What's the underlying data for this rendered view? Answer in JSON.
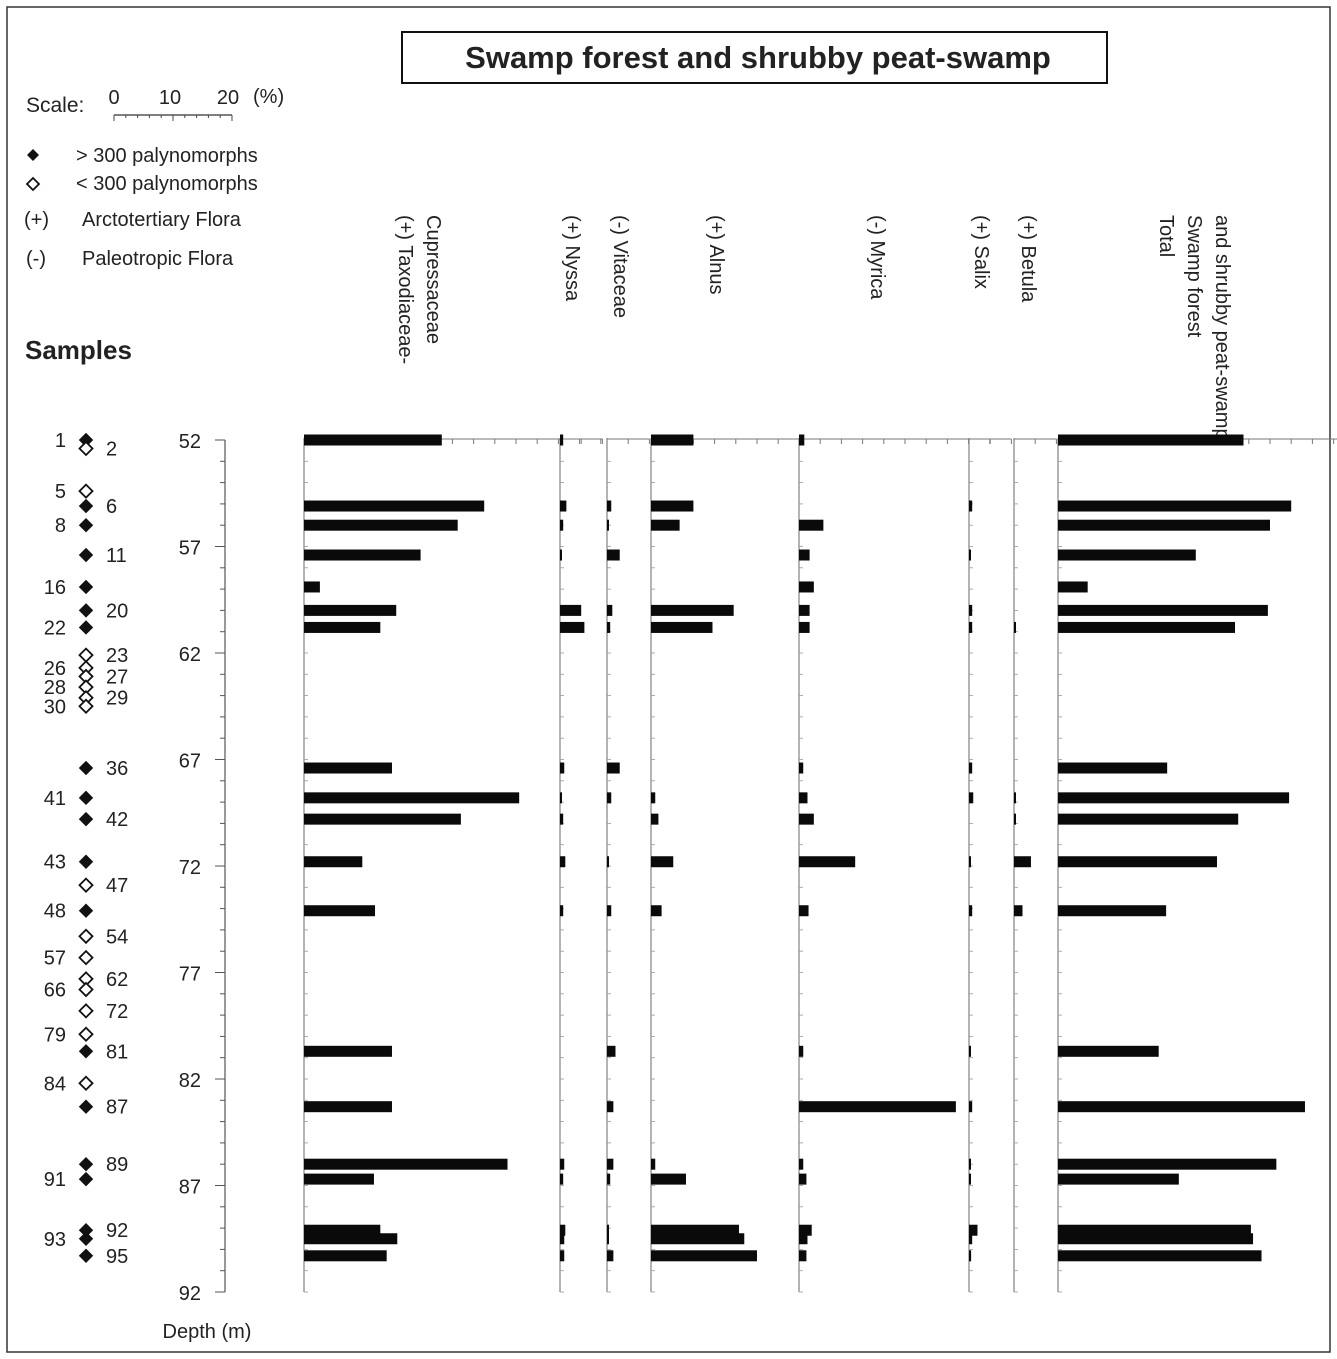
{
  "chart_data": {
    "type": "bar",
    "orientation": "horizontal",
    "title": "Swamp forest and shrubby peat-swamp",
    "scale": {
      "label": "Scale:",
      "ticks": [
        "0",
        "10",
        "20"
      ],
      "unit": "(%)"
    },
    "legend": [
      {
        "symbol": "filled-diamond",
        "text": "> 300 palynomorphs"
      },
      {
        "symbol": "open-diamond",
        "text": "< 300 palynomorphs"
      },
      {
        "symbol": "(+)",
        "text": "Arctotertiary Flora"
      },
      {
        "symbol": "(-)",
        "text": "Paleotropic Flora"
      }
    ],
    "samples_label": "Samples",
    "ylabel": "Depth (m)",
    "depth_ticks": [
      52,
      57,
      62,
      67,
      72,
      77,
      82,
      87,
      92
    ],
    "ylim": [
      52,
      92
    ],
    "panels": [
      {
        "name": "(+) Taxodiaceae-",
        "name2": "Cupressaceae",
        "max": 28
      },
      {
        "name": "(+) Nyssa",
        "max": 4
      },
      {
        "name": "(-) Vitaceae",
        "max": 4
      },
      {
        "name": "(+) Alnus",
        "max": 14
      },
      {
        "name": "(-) Myrica",
        "max": 18
      },
      {
        "name": "(+) Salix",
        "max": 4
      },
      {
        "name": "(+) Betula",
        "max": 4
      },
      {
        "name": "Total",
        "name2": "Swamp forest",
        "name3": "and shrubby peat-swamp",
        "max": 30
      }
    ],
    "samples": [
      {
        "id": "1",
        "side": "left",
        "filled": true,
        "depth": 52.0,
        "values": [
          13,
          0.3,
          0,
          4,
          0.5,
          0,
          0,
          17.5
        ]
      },
      {
        "id": "2",
        "side": "right",
        "filled": false,
        "depth": 52.4,
        "values": null
      },
      {
        "id": "5",
        "side": "left",
        "filled": false,
        "depth": 54.4,
        "values": null
      },
      {
        "id": "6",
        "side": "right",
        "filled": true,
        "depth": 55.1,
        "values": [
          17,
          0.6,
          0.4,
          4,
          0,
          0.3,
          0,
          22
        ]
      },
      {
        "id": "8",
        "side": "left",
        "filled": true,
        "depth": 56.0,
        "values": [
          14.5,
          0.3,
          0.1,
          2.7,
          2.3,
          0,
          0,
          20
        ]
      },
      {
        "id": "11",
        "side": "right",
        "filled": true,
        "depth": 57.4,
        "values": [
          11,
          0.1,
          1.2,
          0,
          1,
          0.1,
          0,
          13
        ]
      },
      {
        "id": "16",
        "side": "left",
        "filled": true,
        "depth": 58.9,
        "values": [
          1.5,
          0,
          0,
          0,
          1.4,
          0,
          0,
          2.8
        ]
      },
      {
        "id": "20",
        "side": "right",
        "filled": true,
        "depth": 60.0,
        "values": [
          8.7,
          2,
          0.5,
          7.8,
          1,
          0.3,
          0,
          19.8
        ]
      },
      {
        "id": "22",
        "side": "left",
        "filled": true,
        "depth": 60.8,
        "values": [
          7.2,
          2.3,
          0.3,
          5.8,
          1,
          0.3,
          0.1,
          16.7
        ]
      },
      {
        "id": "23",
        "side": "right",
        "filled": false,
        "depth": 62.1,
        "values": null
      },
      {
        "id": "26",
        "side": "left",
        "filled": false,
        "depth": 62.7,
        "values": null
      },
      {
        "id": "27",
        "side": "right",
        "filled": false,
        "depth": 63.1,
        "values": null
      },
      {
        "id": "28",
        "side": "left",
        "filled": false,
        "depth": 63.6,
        "values": null
      },
      {
        "id": "29",
        "side": "right",
        "filled": false,
        "depth": 64.1,
        "values": null
      },
      {
        "id": "30",
        "side": "left",
        "filled": false,
        "depth": 64.5,
        "values": null
      },
      {
        "id": "36",
        "side": "right",
        "filled": true,
        "depth": 67.4,
        "values": [
          8.3,
          0.4,
          1.2,
          0,
          0.4,
          0.3,
          0,
          10.3
        ]
      },
      {
        "id": "41",
        "side": "left",
        "filled": true,
        "depth": 68.8,
        "values": [
          20.3,
          0.1,
          0.4,
          0.4,
          0.8,
          0.4,
          0.1,
          21.8
        ]
      },
      {
        "id": "42",
        "side": "right",
        "filled": true,
        "depth": 69.8,
        "values": [
          14.8,
          0.3,
          0,
          0.7,
          1.4,
          0,
          0.1,
          17
        ]
      },
      {
        "id": "43",
        "side": "left",
        "filled": true,
        "depth": 71.8,
        "values": [
          5.5,
          0.5,
          0.1,
          2.1,
          5.3,
          0.1,
          1.6,
          15
        ]
      },
      {
        "id": "47",
        "side": "right",
        "filled": false,
        "depth": 72.9,
        "values": null
      },
      {
        "id": "48",
        "side": "left",
        "filled": true,
        "depth": 74.1,
        "values": [
          6.7,
          0.3,
          0.4,
          1,
          0.9,
          0.3,
          0.8,
          10.2
        ]
      },
      {
        "id": "54",
        "side": "right",
        "filled": false,
        "depth": 75.3,
        "values": null
      },
      {
        "id": "57",
        "side": "left",
        "filled": false,
        "depth": 76.3,
        "values": null
      },
      {
        "id": "62",
        "side": "right",
        "filled": false,
        "depth": 77.3,
        "values": null
      },
      {
        "id": "66",
        "side": "left",
        "filled": false,
        "depth": 77.8,
        "values": null
      },
      {
        "id": "72",
        "side": "right",
        "filled": false,
        "depth": 78.8,
        "values": null
      },
      {
        "id": "79",
        "side": "left",
        "filled": false,
        "depth": 79.9,
        "values": null
      },
      {
        "id": "81",
        "side": "right",
        "filled": true,
        "depth": 80.7,
        "values": [
          8.3,
          0,
          0.8,
          0,
          0.4,
          0.1,
          0,
          9.5
        ]
      },
      {
        "id": "84",
        "side": "left",
        "filled": false,
        "depth": 82.2,
        "values": null
      },
      {
        "id": "87",
        "side": "right",
        "filled": true,
        "depth": 83.3,
        "values": [
          8.3,
          0,
          0.6,
          0,
          14.8,
          0.3,
          0,
          23.3
        ]
      },
      {
        "id": "89",
        "side": "right",
        "filled": true,
        "depth": 86.0,
        "values": [
          19.2,
          0.4,
          0.6,
          0.4,
          0.4,
          0.1,
          0,
          20.6
        ]
      },
      {
        "id": "91",
        "side": "left",
        "filled": true,
        "depth": 86.7,
        "values": [
          6.6,
          0.3,
          0.3,
          3.3,
          0.7,
          0.1,
          0,
          11.4
        ]
      },
      {
        "id": "92",
        "side": "right",
        "filled": true,
        "depth": 89.1,
        "values": [
          7.2,
          0.5,
          0.1,
          8.3,
          1.2,
          0.8,
          0,
          18.2
        ]
      },
      {
        "id": "93",
        "side": "left",
        "filled": true,
        "depth": 89.5,
        "values": [
          8.8,
          0.4,
          0.1,
          8.8,
          0.8,
          0.3,
          0,
          18.4
        ]
      },
      {
        "id": "95",
        "side": "right",
        "filled": true,
        "depth": 90.3,
        "values": [
          7.8,
          0.4,
          0.6,
          10,
          0.7,
          0.2,
          0,
          19.2
        ]
      }
    ]
  }
}
